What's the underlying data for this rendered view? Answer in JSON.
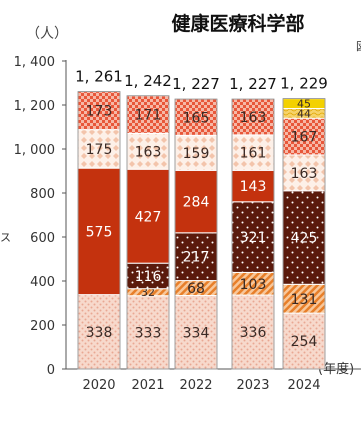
{
  "chart_data": {
    "type": "bar",
    "stacked": true,
    "title": "健康医療科学部",
    "ylabel": "（人）",
    "xlabel": "(年度)",
    "categories": [
      "2020",
      "2021",
      "2022",
      "2023",
      "2024"
    ],
    "ylim": [
      0,
      1400
    ],
    "yticks": [
      0,
      200,
      400,
      600,
      800,
      1000,
      1200,
      1400
    ],
    "ytick_labels": [
      "0",
      "200",
      "400",
      "600",
      "800",
      "1, 000",
      "1, 200",
      "1, 400"
    ],
    "totals": [
      1261,
      1242,
      1227,
      1227,
      1229
    ],
    "total_labels": [
      "1, 261",
      "1, 242",
      "1, 227",
      "1, 227",
      "1, 229"
    ],
    "series": [
      {
        "values": [
          338,
          333,
          334,
          336,
          254
        ],
        "color": "#f6d3c6",
        "pattern": "light-dots"
      },
      {
        "values": [
          0,
          32,
          68,
          103,
          131
        ],
        "color": "#f2a35a",
        "pattern": "diagonal"
      },
      {
        "values": [
          0,
          116,
          217,
          321,
          425
        ],
        "color": "#5a1a0c",
        "pattern": "white-dots"
      },
      {
        "values": [
          575,
          427,
          284,
          143,
          0
        ],
        "color": "#c4320e",
        "pattern": "solid"
      },
      {
        "values": [
          175,
          163,
          159,
          161,
          163
        ],
        "color": "#fbe6da",
        "pattern": "diamonds"
      },
      {
        "values": [
          173,
          171,
          165,
          163,
          167
        ],
        "color": "#e8573a",
        "pattern": "checker"
      },
      {
        "values": [
          0,
          0,
          0,
          0,
          44
        ],
        "color": "#f5c542",
        "pattern": "wavy"
      },
      {
        "values": [
          0,
          0,
          0,
          0,
          45
        ],
        "color": "#f3d100",
        "pattern": "solid"
      }
    ],
    "grid": false,
    "legend": "none",
    "partial_labels": [
      "図",
      "ス"
    ]
  }
}
